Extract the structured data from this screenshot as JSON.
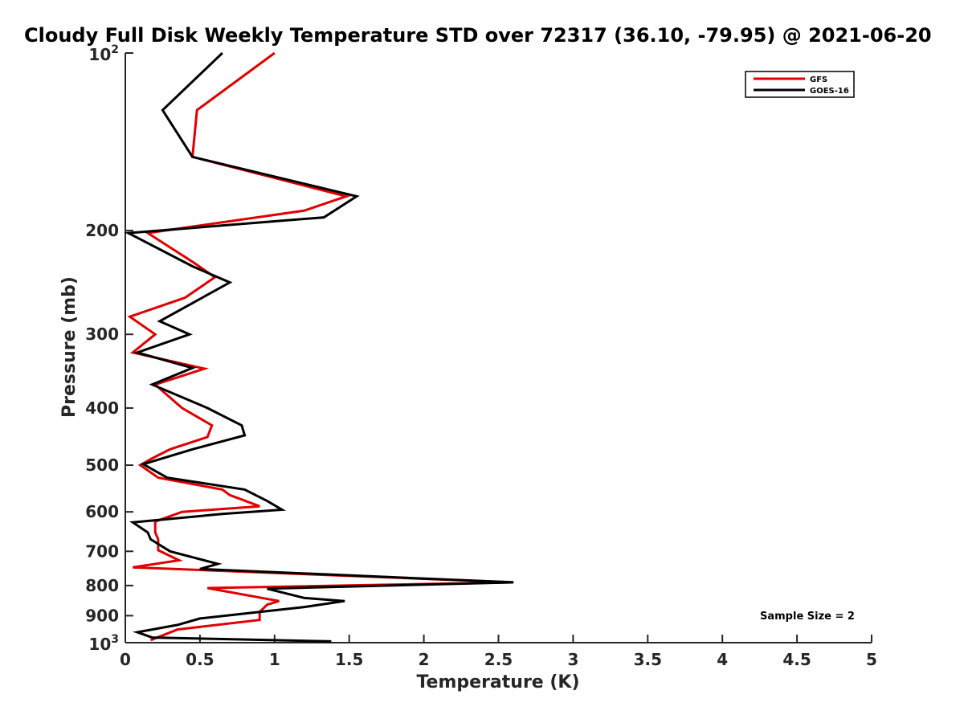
{
  "chart_data": {
    "type": "line",
    "title": "Cloudy Full Disk Weekly Temperature STD over 72317 (36.10, -79.95) @ 2021-06-20",
    "xlabel": "Temperature (K)",
    "ylabel": "Pressure (mb)",
    "xlim": [
      0,
      5
    ],
    "ylim": [
      100,
      1000
    ],
    "y_scale": "log",
    "y_reversed": true,
    "x_ticks": [
      "0",
      "0.5",
      "1",
      "1.5",
      "2",
      "2.5",
      "3",
      "3.5",
      "4",
      "4.5",
      "5"
    ],
    "y_ticks": [
      {
        "value": 100,
        "base": "10",
        "exp": "2"
      },
      {
        "value": 200,
        "label": "200"
      },
      {
        "value": 300,
        "label": "300"
      },
      {
        "value": 400,
        "label": "400"
      },
      {
        "value": 500,
        "label": "500"
      },
      {
        "value": 600,
        "label": "600"
      },
      {
        "value": 700,
        "label": "700"
      },
      {
        "value": 800,
        "label": "800"
      },
      {
        "value": 900,
        "label": "900"
      },
      {
        "value": 1000,
        "base": "10",
        "exp": "3"
      }
    ],
    "grid": false,
    "legend_position": "top-right",
    "annotation": "Sample Size = 2",
    "series": [
      {
        "name": "GFS",
        "color": "#e00000",
        "points": [
          [
            1.0,
            100
          ],
          [
            0.48,
            125
          ],
          [
            0.45,
            150
          ],
          [
            1.48,
            175
          ],
          [
            1.2,
            185
          ],
          [
            0.15,
            202
          ],
          [
            0.45,
            226
          ],
          [
            0.6,
            240
          ],
          [
            0.4,
            260
          ],
          [
            0.03,
            280
          ],
          [
            0.2,
            300
          ],
          [
            0.05,
            322
          ],
          [
            0.53,
            343
          ],
          [
            0.2,
            365
          ],
          [
            0.38,
            400
          ],
          [
            0.58,
            428
          ],
          [
            0.55,
            448
          ],
          [
            0.3,
            470
          ],
          [
            0.18,
            487
          ],
          [
            0.1,
            500
          ],
          [
            0.22,
            525
          ],
          [
            0.65,
            550
          ],
          [
            0.7,
            562
          ],
          [
            0.9,
            587
          ],
          [
            0.38,
            600
          ],
          [
            0.2,
            623
          ],
          [
            0.2,
            650
          ],
          [
            0.22,
            668
          ],
          [
            0.22,
            697
          ],
          [
            0.36,
            725
          ],
          [
            0.05,
            745
          ],
          [
            2.6,
            790
          ],
          [
            0.55,
            808
          ],
          [
            1.03,
            850
          ],
          [
            0.95,
            862
          ],
          [
            0.9,
            887
          ],
          [
            0.9,
            915
          ],
          [
            0.35,
            950
          ],
          [
            0.17,
            990
          ]
        ]
      },
      {
        "name": "GOES-16",
        "color": "#000000",
        "points": [
          [
            0.65,
            100
          ],
          [
            0.25,
            125
          ],
          [
            0.45,
            150
          ],
          [
            1.55,
            175
          ],
          [
            1.33,
            190
          ],
          [
            0.02,
            202
          ],
          [
            0.45,
            230
          ],
          [
            0.7,
            245
          ],
          [
            0.23,
            285
          ],
          [
            0.43,
            300
          ],
          [
            0.08,
            322
          ],
          [
            0.45,
            342
          ],
          [
            0.18,
            365
          ],
          [
            0.55,
            400
          ],
          [
            0.78,
            428
          ],
          [
            0.8,
            445
          ],
          [
            0.45,
            470
          ],
          [
            0.12,
            498
          ],
          [
            0.28,
            525
          ],
          [
            0.8,
            550
          ],
          [
            0.95,
            575
          ],
          [
            1.05,
            595
          ],
          [
            0.65,
            605
          ],
          [
            0.05,
            625
          ],
          [
            0.15,
            650
          ],
          [
            0.17,
            668
          ],
          [
            0.3,
            700
          ],
          [
            0.62,
            735
          ],
          [
            0.5,
            750
          ],
          [
            2.6,
            790
          ],
          [
            0.95,
            810
          ],
          [
            1.2,
            840
          ],
          [
            1.47,
            850
          ],
          [
            1.2,
            870
          ],
          [
            0.5,
            910
          ],
          [
            0.35,
            933
          ],
          [
            0.08,
            960
          ],
          [
            0.18,
            980
          ],
          [
            1.38,
            995
          ]
        ]
      }
    ]
  }
}
